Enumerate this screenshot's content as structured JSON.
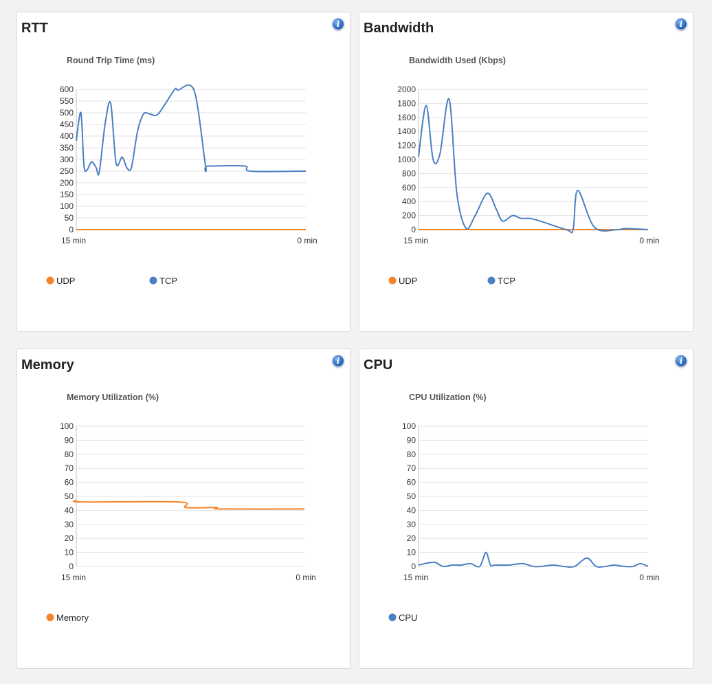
{
  "colors": {
    "udp": "#f5832a",
    "tcp": "#4a7fc1",
    "memory": "#f5832a",
    "cpu": "#4a7fc1"
  },
  "panels": [
    {
      "id": "rtt",
      "title": "RTT"
    },
    {
      "id": "bandwidth",
      "title": "Bandwidth"
    },
    {
      "id": "memory",
      "title": "Memory"
    },
    {
      "id": "cpu",
      "title": "CPU"
    }
  ],
  "chart_data": [
    {
      "type": "line",
      "title": "Round Trip Time (ms)",
      "xlabel": "",
      "ylabel": "",
      "x_tick_labels": [
        "15 min",
        "0 min"
      ],
      "xlim": [
        15,
        0
      ],
      "ylim": [
        0,
        600
      ],
      "y_ticks": [
        0,
        50,
        100,
        150,
        200,
        250,
        300,
        350,
        400,
        450,
        500,
        550,
        600
      ],
      "grid": true,
      "legend_position": "bottom",
      "series": [
        {
          "name": "UDP",
          "color": "#f5832a",
          "x": [
            15,
            0
          ],
          "y": [
            0,
            0
          ]
        },
        {
          "name": "TCP",
          "color": "#4a7fc1",
          "x": [
            15,
            14.7,
            14.5,
            14.3,
            14.0,
            13.7,
            13.5,
            13.1,
            12.75,
            12.4,
            12.0,
            11.7,
            11.4,
            11.0,
            10.6,
            10.2,
            9.65,
            8.6,
            8.35,
            7.3,
            6.55,
            6.4,
            4.0,
            3.6,
            0
          ],
          "y": [
            380,
            500,
            275,
            255,
            290,
            265,
            245,
            460,
            540,
            285,
            310,
            265,
            265,
            420,
            495,
            495,
            495,
            597,
            597,
            595,
            272,
            272,
            272,
            250,
            250
          ]
        }
      ]
    },
    {
      "type": "line",
      "title": "Bandwidth Used (Kbps)",
      "xlabel": "",
      "ylabel": "",
      "x_tick_labels": [
        "15 min",
        "0 min"
      ],
      "xlim": [
        15,
        0
      ],
      "ylim": [
        0,
        2000
      ],
      "y_ticks": [
        0,
        200,
        400,
        600,
        800,
        1000,
        1200,
        1400,
        1600,
        1800,
        2000
      ],
      "grid": true,
      "legend_position": "bottom",
      "series": [
        {
          "name": "UDP",
          "color": "#f5832a",
          "x": [
            15,
            0
          ],
          "y": [
            0,
            0
          ]
        },
        {
          "name": "TCP",
          "color": "#4a7fc1",
          "x": [
            15,
            14.5,
            14.05,
            13.6,
            13.0,
            12.5,
            11.9,
            11.3,
            10.5,
            9.9,
            9.5,
            8.85,
            8.3,
            7.5,
            5.35,
            4.9,
            4.6,
            3.5,
            2.0,
            1.5,
            0
          ],
          "y": [
            1040,
            1770,
            1000,
            1080,
            1860,
            520,
            20,
            200,
            520,
            280,
            120,
            200,
            160,
            150,
            0,
            0,
            560,
            30,
            0,
            15,
            0
          ]
        }
      ]
    },
    {
      "type": "line",
      "title": "Memory Utilization (%)",
      "xlabel": "",
      "ylabel": "",
      "x_tick_labels": [
        "15 min",
        "0 min"
      ],
      "xlim": [
        15,
        0
      ],
      "ylim": [
        0,
        100
      ],
      "y_ticks": [
        0,
        10,
        20,
        30,
        40,
        50,
        60,
        70,
        80,
        90,
        100
      ],
      "grid": true,
      "legend_position": "bottom",
      "series": [
        {
          "name": "Memory",
          "color": "#f5832a",
          "x": [
            15,
            14.6,
            8.2,
            7.8,
            5.8,
            5.5,
            0
          ],
          "y": [
            47,
            46,
            46,
            42,
            42,
            41,
            41
          ]
        }
      ]
    },
    {
      "type": "line",
      "title": "CPU Utilization (%)",
      "xlabel": "",
      "ylabel": "",
      "x_tick_labels": [
        "15 min",
        "0 min"
      ],
      "xlim": [
        15,
        0
      ],
      "ylim": [
        0,
        100
      ],
      "y_ticks": [
        0,
        10,
        20,
        30,
        40,
        50,
        60,
        70,
        80,
        90,
        100
      ],
      "grid": true,
      "legend_position": "bottom",
      "series": [
        {
          "name": "CPU",
          "color": "#4a7fc1",
          "x": [
            15,
            14.0,
            13.4,
            12.8,
            12.2,
            11.6,
            11.0,
            10.6,
            10.3,
            10.0,
            9.1,
            8.2,
            7.5,
            7.0,
            6.2,
            5.5,
            4.8,
            4.0,
            3.4,
            2.8,
            2.2,
            1.6,
            1.0,
            0.5,
            0
          ],
          "y": [
            1,
            3,
            0,
            1,
            1,
            2,
            0,
            10,
            1,
            1,
            1,
            2,
            0,
            0,
            1,
            0,
            0,
            6,
            0,
            0,
            1,
            0,
            0,
            2,
            0
          ]
        }
      ]
    }
  ]
}
